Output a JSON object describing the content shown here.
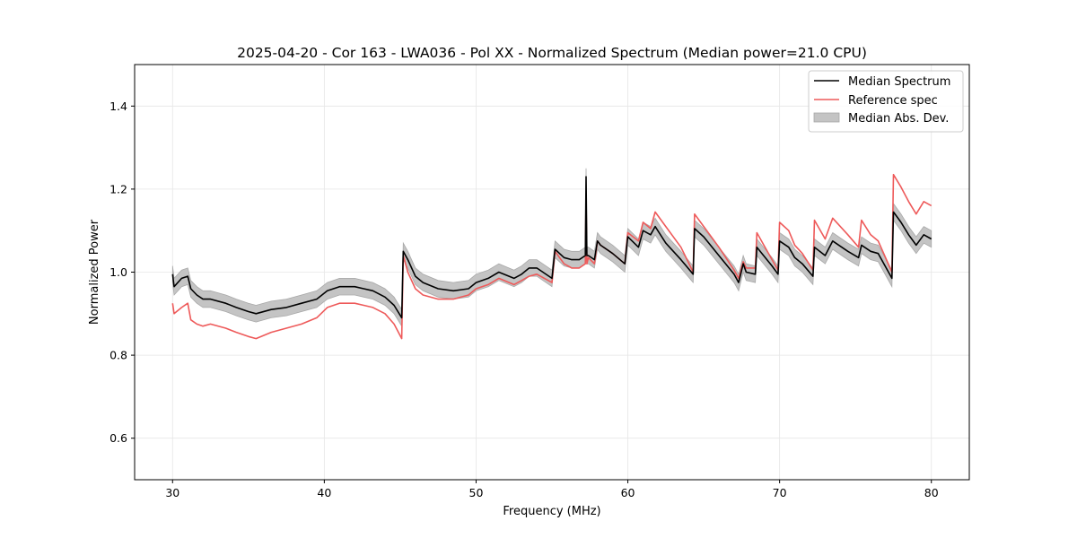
{
  "chart_data": {
    "type": "line",
    "title": "2025-04-20 - Cor 163 - LWA036 - Pol XX - Normalized Spectrum (Median power=21.0 CPU)",
    "xlabel": "Frequency (MHz)",
    "ylabel": "Normalized Power",
    "xlim": [
      27.5,
      82.5
    ],
    "ylim": [
      0.5,
      1.5
    ],
    "xticks": [
      30,
      40,
      50,
      60,
      70,
      80
    ],
    "yticks": [
      0.6,
      0.8,
      1.0,
      1.2,
      1.4
    ],
    "xtick_labels": [
      "30",
      "40",
      "50",
      "60",
      "70",
      "80"
    ],
    "ytick_labels": [
      "0.6",
      "0.8",
      "1.0",
      "1.2",
      "1.4"
    ],
    "grid": true,
    "legend_position": "top-right",
    "legend": [
      "Median Spectrum",
      "Reference spec",
      "Median Abs. Dev."
    ],
    "colors": {
      "median": "#000000",
      "reference": "#ee5a5a",
      "band": "#c4c4c4",
      "band_edge": "#a8a8a8",
      "grid": "#e6e6e6"
    },
    "mad_halfwidth": 0.02,
    "series": [
      {
        "name": "Median Spectrum",
        "x": [
          30.0,
          30.1,
          30.6,
          31.0,
          31.2,
          31.6,
          32.0,
          32.5,
          33.5,
          34.2,
          35.0,
          35.5,
          36.5,
          37.5,
          38.5,
          39.5,
          40.2,
          41.0,
          42.0,
          42.6,
          43.2,
          44.0,
          44.6,
          45.1,
          45.2,
          45.5,
          46.0,
          46.5,
          47.5,
          48.5,
          49.5,
          50.0,
          50.8,
          51.5,
          52.5,
          53.0,
          53.5,
          54.0,
          55.0,
          55.2,
          55.8,
          56.3,
          56.8,
          57.2,
          57.25,
          57.3,
          57.4,
          57.8,
          58.0,
          58.2,
          59.0,
          59.8,
          60.0,
          60.7,
          61.0,
          61.5,
          61.8,
          62.5,
          63.5,
          64.3,
          64.4,
          65.0,
          66.0,
          67.0,
          67.3,
          67.6,
          67.8,
          68.4,
          68.5,
          69.5,
          69.9,
          70.0,
          70.6,
          71.0,
          71.5,
          72.2,
          72.3,
          73.0,
          73.5,
          74.5,
          75.2,
          75.4,
          76.0,
          76.5,
          77.4,
          77.5,
          78.0,
          78.5,
          79.0,
          79.5,
          80.0
        ],
        "y": [
          0.995,
          0.965,
          0.985,
          0.99,
          0.96,
          0.945,
          0.935,
          0.935,
          0.925,
          0.915,
          0.905,
          0.9,
          0.91,
          0.915,
          0.925,
          0.935,
          0.955,
          0.965,
          0.965,
          0.96,
          0.955,
          0.94,
          0.92,
          0.89,
          1.05,
          1.03,
          0.99,
          0.975,
          0.96,
          0.955,
          0.96,
          0.975,
          0.985,
          1.0,
          0.985,
          0.995,
          1.01,
          1.01,
          0.985,
          1.055,
          1.035,
          1.03,
          1.03,
          1.04,
          1.23,
          1.04,
          1.04,
          1.03,
          1.075,
          1.065,
          1.045,
          1.02,
          1.085,
          1.06,
          1.1,
          1.09,
          1.11,
          1.07,
          1.03,
          0.995,
          1.105,
          1.085,
          1.04,
          0.995,
          0.975,
          1.02,
          1.0,
          0.995,
          1.06,
          1.015,
          0.995,
          1.075,
          1.06,
          1.035,
          1.02,
          0.99,
          1.06,
          1.04,
          1.075,
          1.05,
          1.035,
          1.065,
          1.05,
          1.045,
          0.985,
          1.145,
          1.12,
          1.09,
          1.065,
          1.09,
          1.08
        ]
      },
      {
        "name": "Reference spec",
        "x": [
          30.0,
          30.1,
          30.6,
          31.0,
          31.2,
          31.6,
          32.0,
          32.5,
          33.5,
          34.2,
          35.0,
          35.5,
          36.5,
          37.5,
          38.5,
          39.5,
          40.2,
          41.0,
          42.0,
          42.6,
          43.2,
          44.0,
          44.6,
          45.1,
          45.2,
          45.5,
          46.0,
          46.5,
          47.5,
          48.5,
          49.5,
          50.0,
          50.8,
          51.5,
          52.5,
          53.0,
          53.5,
          54.0,
          55.0,
          55.2,
          55.8,
          56.3,
          56.8,
          57.2,
          57.25,
          57.3,
          57.4,
          57.8,
          58.0,
          58.2,
          59.0,
          59.8,
          60.0,
          60.7,
          61.0,
          61.5,
          61.8,
          62.5,
          63.5,
          64.3,
          64.4,
          65.0,
          66.0,
          67.0,
          67.3,
          67.6,
          67.8,
          68.4,
          68.5,
          69.5,
          69.9,
          70.0,
          70.6,
          71.0,
          71.5,
          72.2,
          72.3,
          73.0,
          73.5,
          74.5,
          75.2,
          75.4,
          76.0,
          76.5,
          77.4,
          77.5,
          78.0,
          78.5,
          79.0,
          79.5,
          80.0
        ],
        "y": [
          0.925,
          0.9,
          0.915,
          0.925,
          0.885,
          0.875,
          0.87,
          0.875,
          0.865,
          0.855,
          0.845,
          0.84,
          0.855,
          0.865,
          0.875,
          0.89,
          0.915,
          0.925,
          0.925,
          0.92,
          0.915,
          0.9,
          0.875,
          0.84,
          1.04,
          1.0,
          0.96,
          0.945,
          0.935,
          0.935,
          0.945,
          0.96,
          0.97,
          0.985,
          0.97,
          0.98,
          0.99,
          0.995,
          0.975,
          1.05,
          1.02,
          1.01,
          1.01,
          1.02,
          1.18,
          1.02,
          1.035,
          1.02,
          1.075,
          1.065,
          1.045,
          1.02,
          1.095,
          1.075,
          1.12,
          1.105,
          1.145,
          1.11,
          1.06,
          1.0,
          1.14,
          1.11,
          1.06,
          1.005,
          0.985,
          1.025,
          1.01,
          1.01,
          1.095,
          1.03,
          1.005,
          1.12,
          1.1,
          1.065,
          1.045,
          1.005,
          1.125,
          1.08,
          1.13,
          1.09,
          1.06,
          1.125,
          1.09,
          1.075,
          1.0,
          1.235,
          1.205,
          1.17,
          1.14,
          1.17,
          1.16
        ]
      }
    ]
  }
}
